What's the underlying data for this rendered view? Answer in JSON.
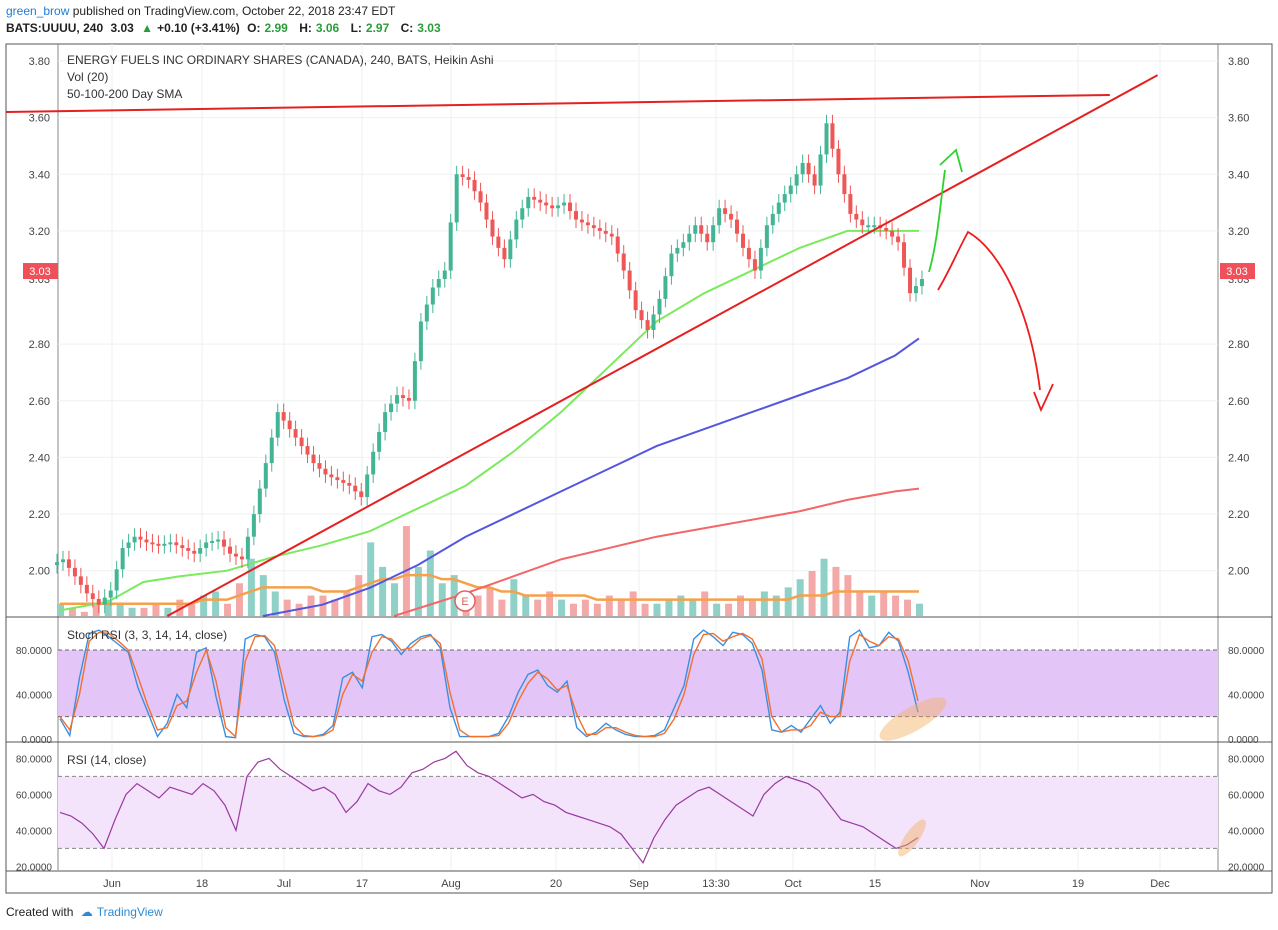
{
  "header": {
    "username": "green_brow",
    "published_text": "published on TradingView.com, October 22, 2018 23:47 EDT",
    "symbol": "BATS:UUUU, 240",
    "last": "3.03",
    "change": "+0.10 (+3.41%)",
    "o_label": "O:",
    "o_value": "2.99",
    "h_label": "H:",
    "h_value": "3.06",
    "l_label": "L:",
    "l_value": "2.97",
    "c_label": "C:",
    "c_value": "3.03"
  },
  "footer": {
    "created_with": "Created with",
    "brand": "TradingView"
  },
  "chart_data": [
    {
      "type": "candlestick",
      "title": "ENERGY FUELS INC ORDINARY SHARES (CANADA), 240, BATS, Heikin Ashi",
      "legend": [
        "Vol (20)",
        "50-100-200 Day SMA"
      ],
      "price_label": "3.03",
      "ylim": [
        1.84,
        3.86
      ],
      "y_ticks": [
        "3.80",
        "3.60",
        "3.40",
        "3.20",
        "3.03",
        "2.80",
        "2.60",
        "2.40",
        "2.20",
        "2.00"
      ],
      "x_ticks": [
        "Jun",
        "18",
        "Jul",
        "17",
        "Aug",
        "20",
        "Sep",
        "13:30",
        "Oct",
        "15",
        "Nov",
        "19",
        "Dec"
      ],
      "event_marker": "E",
      "close_path": [
        [
          0,
          2.04
        ],
        [
          1,
          1.98
        ],
        [
          2,
          1.92
        ],
        [
          3,
          1.88
        ],
        [
          4,
          1.93
        ],
        [
          5,
          2.08
        ],
        [
          6,
          2.12
        ],
        [
          7,
          2.1
        ],
        [
          8,
          2.09
        ],
        [
          9,
          2.1
        ],
        [
          10,
          2.08
        ],
        [
          11,
          2.06
        ],
        [
          12,
          2.1
        ],
        [
          13,
          2.11
        ],
        [
          14,
          2.06
        ],
        [
          15,
          2.04
        ],
        [
          16,
          2.2
        ],
        [
          17,
          2.38
        ],
        [
          18,
          2.56
        ],
        [
          19,
          2.5
        ],
        [
          20,
          2.44
        ],
        [
          21,
          2.38
        ],
        [
          22,
          2.34
        ],
        [
          23,
          2.32
        ],
        [
          24,
          2.3
        ],
        [
          25,
          2.26
        ],
        [
          26,
          2.42
        ],
        [
          27,
          2.56
        ],
        [
          28,
          2.62
        ],
        [
          29,
          2.6
        ],
        [
          30,
          2.88
        ],
        [
          31,
          3.0
        ],
        [
          32,
          3.06
        ],
        [
          33,
          3.4
        ],
        [
          34,
          3.38
        ],
        [
          35,
          3.3
        ],
        [
          36,
          3.18
        ],
        [
          37,
          3.1
        ],
        [
          38,
          3.24
        ],
        [
          39,
          3.32
        ],
        [
          40,
          3.3
        ],
        [
          41,
          3.28
        ],
        [
          42,
          3.3
        ],
        [
          43,
          3.24
        ],
        [
          44,
          3.22
        ],
        [
          45,
          3.2
        ],
        [
          46,
          3.18
        ],
        [
          47,
          3.06
        ],
        [
          48,
          2.92
        ],
        [
          49,
          2.85
        ],
        [
          50,
          2.96
        ],
        [
          51,
          3.12
        ],
        [
          52,
          3.16
        ],
        [
          53,
          3.22
        ],
        [
          54,
          3.16
        ],
        [
          55,
          3.28
        ],
        [
          56,
          3.24
        ],
        [
          57,
          3.14
        ],
        [
          58,
          3.06
        ],
        [
          59,
          3.22
        ],
        [
          60,
          3.3
        ],
        [
          61,
          3.36
        ],
        [
          62,
          3.44
        ],
        [
          63,
          3.36
        ],
        [
          64,
          3.58
        ],
        [
          65,
          3.4
        ],
        [
          66,
          3.26
        ],
        [
          67,
          3.22
        ],
        [
          68,
          3.22
        ],
        [
          69,
          3.2
        ],
        [
          70,
          3.16
        ],
        [
          71,
          2.98
        ],
        [
          72,
          3.03
        ]
      ],
      "sma": [
        {
          "name": "",
          "color": "#7bea5c",
          "points": [
            [
              0,
              1.86
            ],
            [
              4,
              1.89
            ],
            [
              7,
              1.96
            ],
            [
              10,
              1.98
            ],
            [
              14,
              2.0
            ],
            [
              18,
              2.05
            ],
            [
              22,
              2.09
            ],
            [
              26,
              2.14
            ],
            [
              30,
              2.22
            ],
            [
              34,
              2.3
            ],
            [
              38,
              2.42
            ],
            [
              42,
              2.56
            ],
            [
              46,
              2.72
            ],
            [
              50,
              2.88
            ],
            [
              54,
              2.98
            ],
            [
              58,
              3.06
            ],
            [
              62,
              3.14
            ],
            [
              66,
              3.2
            ],
            [
              70,
              3.2
            ],
            [
              72,
              3.2
            ]
          ]
        },
        {
          "name": "",
          "color": "#5555e0",
          "points": [
            [
              17,
              1.84
            ],
            [
              22,
              1.88
            ],
            [
              26,
              1.94
            ],
            [
              30,
              2.02
            ],
            [
              34,
              2.12
            ],
            [
              38,
              2.2
            ],
            [
              42,
              2.28
            ],
            [
              46,
              2.36
            ],
            [
              50,
              2.44
            ],
            [
              54,
              2.5
            ],
            [
              58,
              2.56
            ],
            [
              62,
              2.62
            ],
            [
              66,
              2.68
            ],
            [
              70,
              2.76
            ],
            [
              72,
              2.82
            ]
          ]
        },
        {
          "name": "",
          "color": "#f26767",
          "points": [
            [
              28,
              1.84
            ],
            [
              34,
              1.92
            ],
            [
              38,
              1.98
            ],
            [
              42,
              2.04
            ],
            [
              46,
              2.08
            ],
            [
              50,
              2.12
            ],
            [
              54,
              2.15
            ],
            [
              58,
              2.18
            ],
            [
              62,
              2.21
            ],
            [
              66,
              2.25
            ],
            [
              70,
              2.28
            ],
            [
              72,
              2.29
            ]
          ]
        }
      ],
      "trendlines": [
        {
          "name": "upper resistance",
          "color": "#e52020",
          "points": [
            [
              -4.5,
              3.62
            ],
            [
              88,
              3.68
            ]
          ]
        },
        {
          "name": "rising support",
          "color": "#e52020",
          "points": [
            [
              9,
              1.84
            ],
            [
              92,
              3.75
            ]
          ]
        }
      ],
      "volume": {
        "values": [
          3,
          2,
          1,
          3,
          4,
          3,
          2,
          2,
          3,
          2,
          4,
          3,
          5,
          6,
          3,
          8,
          14,
          10,
          6,
          4,
          3,
          5,
          5,
          4,
          6,
          10,
          18,
          12,
          8,
          22,
          12,
          16,
          8,
          10,
          6,
          5,
          7,
          4,
          9,
          5,
          4,
          6,
          4,
          3,
          4,
          3,
          5,
          4,
          6,
          3,
          3,
          4,
          5,
          4,
          6,
          3,
          3,
          5,
          4,
          6,
          5,
          7,
          9,
          11,
          14,
          12,
          10,
          6,
          5,
          6,
          5,
          4,
          3
        ],
        "ma_values": [
          3,
          3,
          3,
          3,
          3,
          3,
          3,
          3,
          3,
          3,
          3,
          3,
          4,
          4,
          4,
          5,
          6,
          7,
          7,
          7,
          7,
          7,
          6,
          6,
          6,
          7,
          8,
          9,
          9,
          10,
          10,
          10,
          9,
          9,
          8,
          7,
          7,
          6,
          6,
          5,
          5,
          5,
          5,
          5,
          5,
          4,
          4,
          4,
          4,
          4,
          4,
          4,
          4,
          4,
          4,
          4,
          4,
          4,
          4,
          4,
          4,
          4,
          5,
          5,
          5,
          6,
          6,
          6,
          6,
          6,
          6,
          6,
          6
        ]
      }
    },
    {
      "type": "line",
      "title": "Stoch RSI (3, 3, 14, 14, close)",
      "ylim": [
        0,
        100
      ],
      "y_ticks": [
        "80.0000",
        "40.0000",
        "0.0000"
      ],
      "band": [
        20,
        80
      ],
      "series": [
        {
          "name": "",
          "color": "#3a8fe0",
          "values": [
            18,
            3,
            55,
            95,
            98,
            92,
            85,
            78,
            46,
            24,
            2,
            14,
            40,
            28,
            78,
            82,
            38,
            2,
            1,
            90,
            94,
            92,
            78,
            35,
            5,
            2,
            2,
            4,
            12,
            55,
            60,
            46,
            92,
            94,
            88,
            76,
            86,
            92,
            94,
            82,
            28,
            2,
            2,
            2,
            2,
            5,
            20,
            42,
            58,
            62,
            48,
            42,
            52,
            10,
            2,
            6,
            14,
            8,
            4,
            2,
            2,
            3,
            8,
            28,
            48,
            90,
            98,
            92,
            84,
            96,
            94,
            86,
            62,
            8,
            6,
            12,
            6,
            18,
            30,
            14,
            24,
            92,
            98,
            82,
            84,
            96,
            88,
            60,
            24
          ]
        },
        {
          "name": "",
          "color": "#f07030",
          "values": [
            20,
            8,
            40,
            88,
            96,
            95,
            88,
            80,
            56,
            30,
            8,
            10,
            30,
            34,
            60,
            80,
            52,
            10,
            2,
            70,
            92,
            93,
            84,
            48,
            12,
            3,
            2,
            3,
            8,
            40,
            58,
            52,
            78,
            92,
            90,
            80,
            82,
            90,
            93,
            86,
            42,
            8,
            2,
            2,
            2,
            3,
            14,
            34,
            50,
            60,
            54,
            44,
            48,
            22,
            4,
            4,
            10,
            10,
            6,
            3,
            2,
            2,
            5,
            18,
            40,
            76,
            94,
            95,
            88,
            92,
            95,
            90,
            72,
            20,
            6,
            8,
            8,
            12,
            24,
            20,
            20,
            70,
            94,
            88,
            84,
            92,
            90,
            70,
            34
          ]
        }
      ]
    },
    {
      "type": "line",
      "title": "RSI (14, close)",
      "ylim": [
        18,
        88
      ],
      "y_ticks": [
        "80.0000",
        "60.0000",
        "40.0000",
        "20.0000"
      ],
      "band": [
        30,
        70
      ],
      "series": [
        {
          "name": "",
          "color": "#9a3aa0",
          "values": [
            50,
            48,
            44,
            38,
            30,
            46,
            60,
            66,
            62,
            58,
            64,
            62,
            60,
            66,
            62,
            54,
            40,
            70,
            78,
            80,
            74,
            70,
            66,
            62,
            64,
            60,
            50,
            56,
            66,
            62,
            60,
            64,
            72,
            74,
            78,
            80,
            84,
            76,
            72,
            70,
            66,
            62,
            58,
            60,
            56,
            54,
            50,
            48,
            46,
            44,
            42,
            38,
            30,
            22,
            36,
            46,
            54,
            58,
            62,
            64,
            60,
            56,
            52,
            48,
            60,
            66,
            70,
            68,
            66,
            62,
            54,
            46,
            44,
            42,
            38,
            34,
            30,
            32,
            36
          ]
        }
      ]
    }
  ]
}
